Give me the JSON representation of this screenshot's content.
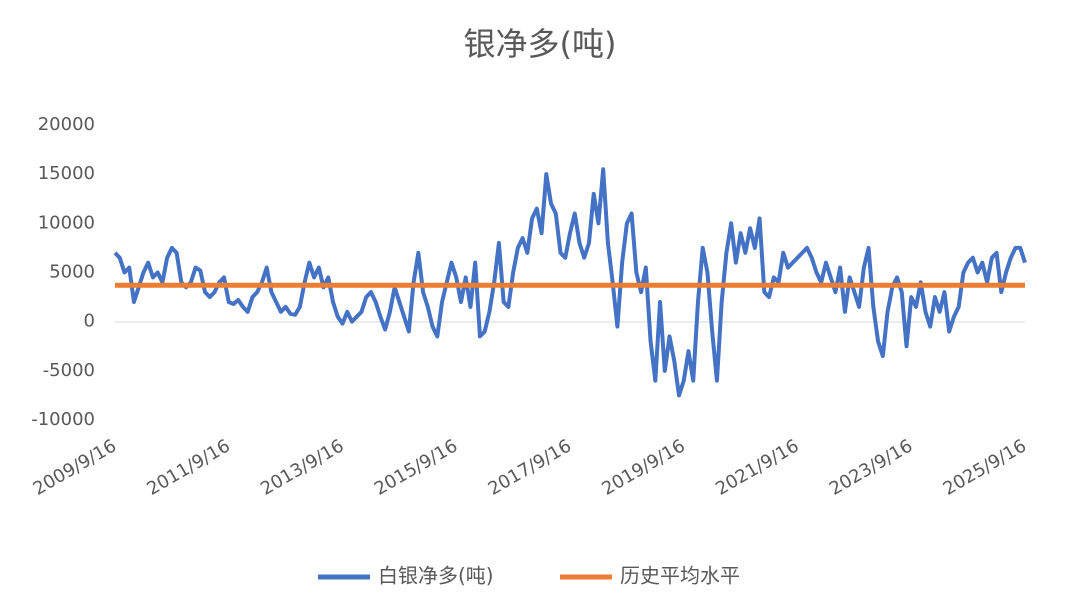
{
  "chart_data": {
    "type": "line",
    "title": "银净多(吨)",
    "categories": [
      "2009/9/16",
      null,
      null,
      null,
      null,
      null,
      null,
      null,
      null,
      null,
      null,
      null,
      null,
      null,
      null,
      null,
      null,
      null,
      null,
      null,
      null,
      null,
      null,
      null,
      "2011/9/16",
      null,
      null,
      null,
      null,
      null,
      null,
      null,
      null,
      null,
      null,
      null,
      null,
      null,
      null,
      null,
      null,
      null,
      null,
      null,
      null,
      null,
      null,
      null,
      "2013/9/16",
      null,
      null,
      null,
      null,
      null,
      null,
      null,
      null,
      null,
      null,
      null,
      null,
      null,
      null,
      null,
      null,
      null,
      null,
      null,
      null,
      null,
      null,
      null,
      "2015/9/16",
      null,
      null,
      null,
      null,
      null,
      null,
      null,
      null,
      null,
      null,
      null,
      null,
      null,
      null,
      null,
      null,
      null,
      null,
      null,
      null,
      null,
      null,
      null,
      "2017/9/16",
      null,
      null,
      null,
      null,
      null,
      null,
      null,
      null,
      null,
      null,
      null,
      null,
      null,
      null,
      null,
      null,
      null,
      null,
      null,
      null,
      null,
      null,
      null,
      "2019/9/16",
      null,
      null,
      null,
      null,
      null,
      null,
      null,
      null,
      null,
      null,
      null,
      null,
      null,
      null,
      null,
      null,
      null,
      null,
      null,
      null,
      null,
      null,
      null,
      "2021/9/16",
      null,
      null,
      null,
      null,
      null,
      null,
      null,
      null,
      null,
      null,
      null,
      null,
      null,
      null,
      null,
      null,
      null,
      null,
      null,
      null,
      null,
      null,
      null,
      "2023/9/16",
      null,
      null,
      null,
      null,
      null,
      null,
      null,
      null,
      null,
      null,
      null,
      null,
      null,
      null,
      null,
      null,
      null,
      null,
      null,
      null,
      null,
      null,
      null,
      "2025/9/16"
    ],
    "series": [
      {
        "name": "白银净多(吨)",
        "color": "#4472c4",
        "values": [
          7000,
          6500,
          5000,
          5500,
          2000,
          3500,
          5000,
          6000,
          4500,
          5000,
          4000,
          6500,
          7500,
          7000,
          4000,
          3500,
          4000,
          5500,
          5200,
          3000,
          2500,
          3000,
          4000,
          4500,
          2000,
          1800,
          2200,
          1500,
          1000,
          2500,
          3000,
          4000,
          5500,
          3000,
          2000,
          1000,
          1500,
          800,
          700,
          1500,
          4000,
          6000,
          4500,
          5500,
          3500,
          4500,
          2000,
          500,
          -200,
          1000,
          0,
          500,
          1000,
          2500,
          3000,
          2000,
          500,
          -800,
          1000,
          3500,
          2000,
          500,
          -1000,
          4000,
          7000,
          3000,
          1500,
          -500,
          -1500,
          2000,
          4000,
          6000,
          4500,
          2000,
          4500,
          1500,
          6000,
          -1500,
          -1000,
          1000,
          4000,
          8000,
          2000,
          1500,
          5000,
          7500,
          8500,
          7000,
          10500,
          11500,
          9000,
          15000,
          12000,
          11000,
          7000,
          6500,
          9000,
          11000,
          8000,
          6500,
          8000,
          13000,
          10000,
          15500,
          8000,
          4000,
          -500,
          6000,
          10000,
          11000,
          5000,
          3000,
          5500,
          -2000,
          -6000,
          2000,
          -5000,
          -1500,
          -4000,
          -7500,
          -6000,
          -3000,
          -6000,
          2000,
          7500,
          5000,
          -1000,
          -6000,
          2000,
          7000,
          10000,
          6000,
          9000,
          7000,
          9500,
          7500,
          10500,
          3000,
          2500,
          4500,
          4000,
          7000,
          5500,
          6000,
          6500,
          7000,
          7500,
          6500,
          5000,
          4000,
          6000,
          4500,
          3000,
          5500,
          1000,
          4500,
          3000,
          1500,
          5500,
          7500,
          1500,
          -2000,
          -3500,
          1000,
          3500,
          4500,
          3000,
          -2500,
          2500,
          1500,
          4000,
          1000,
          -500,
          2500,
          1000,
          3000,
          -1000,
          500,
          1500,
          5000,
          6000,
          6500,
          5000,
          6000,
          4000,
          6500,
          7000,
          3000,
          5000,
          6500,
          7500,
          7500,
          6000
        ]
      },
      {
        "name": "历史平均水平",
        "color": "#ed7d31",
        "values": [
          3700,
          3700,
          3700,
          3700,
          3700,
          3700,
          3700,
          3700,
          3700,
          3700,
          3700,
          3700,
          3700,
          3700,
          3700,
          3700,
          3700,
          3700,
          3700,
          3700,
          3700,
          3700,
          3700,
          3700,
          3700,
          3700,
          3700,
          3700,
          3700,
          3700,
          3700,
          3700,
          3700,
          3700,
          3700,
          3700,
          3700,
          3700,
          3700,
          3700,
          3700,
          3700,
          3700,
          3700,
          3700,
          3700,
          3700,
          3700,
          3700,
          3700,
          3700,
          3700,
          3700,
          3700,
          3700,
          3700,
          3700,
          3700,
          3700,
          3700,
          3700,
          3700,
          3700,
          3700,
          3700,
          3700,
          3700,
          3700,
          3700,
          3700,
          3700,
          3700,
          3700,
          3700,
          3700,
          3700,
          3700,
          3700,
          3700,
          3700,
          3700,
          3700,
          3700,
          3700,
          3700,
          3700,
          3700,
          3700,
          3700,
          3700,
          3700,
          3700,
          3700,
          3700,
          3700,
          3700,
          3700,
          3700,
          3700,
          3700,
          3700,
          3700,
          3700,
          3700,
          3700,
          3700,
          3700,
          3700,
          3700,
          3700,
          3700,
          3700,
          3700,
          3700,
          3700,
          3700,
          3700,
          3700,
          3700,
          3700,
          3700,
          3700,
          3700,
          3700,
          3700,
          3700,
          3700,
          3700,
          3700,
          3700,
          3700,
          3700,
          3700,
          3700,
          3700,
          3700,
          3700,
          3700,
          3700,
          3700,
          3700,
          3700,
          3700,
          3700,
          3700,
          3700,
          3700,
          3700,
          3700,
          3700,
          3700,
          3700,
          3700,
          3700,
          3700,
          3700,
          3700,
          3700,
          3700,
          3700,
          3700,
          3700,
          3700,
          3700,
          3700,
          3700,
          3700,
          3700,
          3700,
          3700,
          3700,
          3700,
          3700,
          3700,
          3700,
          3700,
          3700,
          3700,
          3700,
          3700,
          3700,
          3700,
          3700,
          3700,
          3700,
          3700,
          3700,
          3700,
          3700,
          3700,
          3700,
          3700,
          3700
        ]
      }
    ],
    "ylim": [
      -10000,
      20000
    ],
    "yticks": [
      -10000,
      -5000,
      0,
      5000,
      10000,
      15000,
      20000
    ],
    "grid": false
  }
}
